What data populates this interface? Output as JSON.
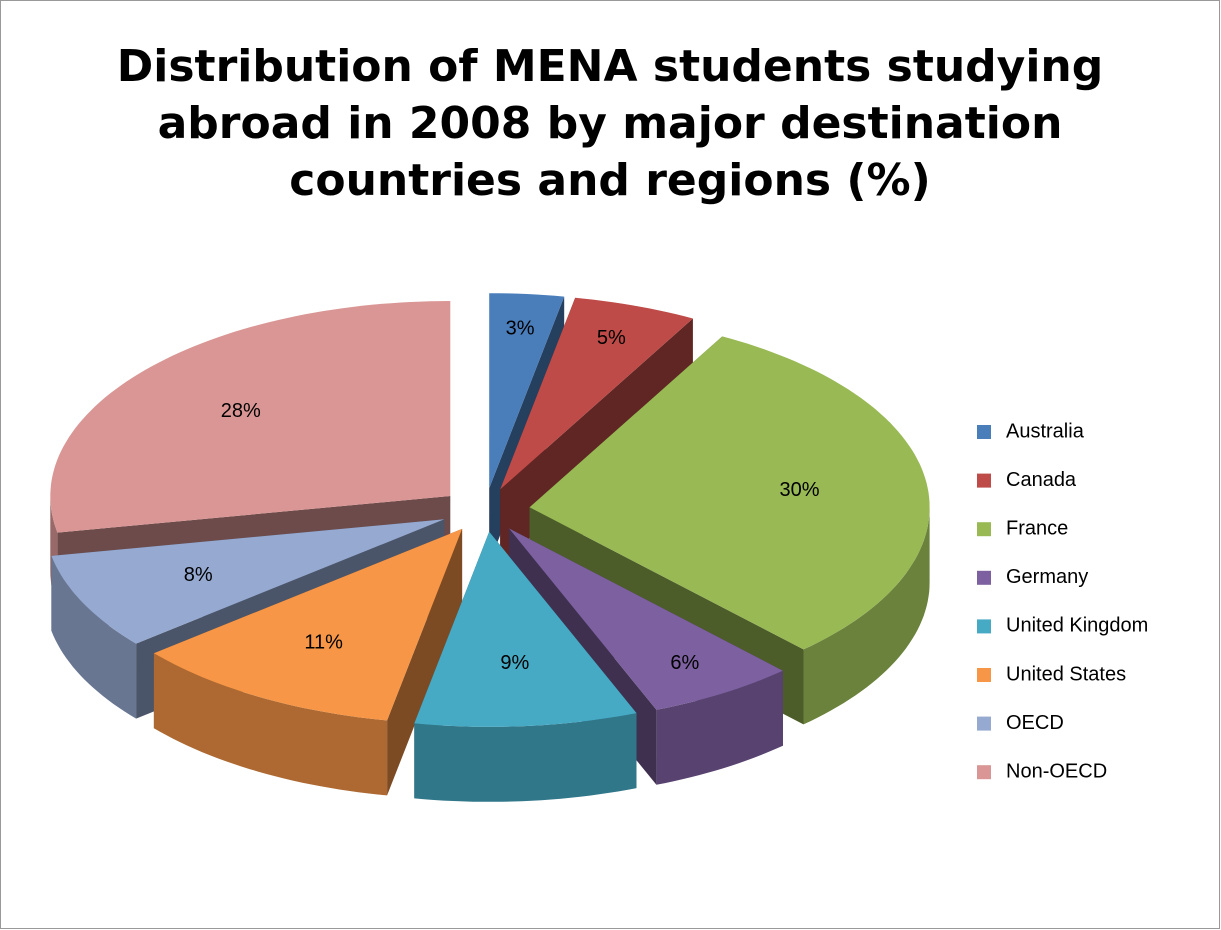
{
  "chart_data": {
    "type": "pie3d",
    "title": "Distribution of MENA students studying abroad in 2008 by major destination countries and regions (%)",
    "categories": [
      "Australia",
      "Canada",
      "France",
      "Germany",
      "United Kingdom",
      "United States",
      "OECD",
      "Non-OECD"
    ],
    "values": [
      3,
      5,
      30,
      6,
      9,
      11,
      8,
      28
    ],
    "value_labels": [
      "3%",
      "5%",
      "30%",
      "6%",
      "9%",
      "11%",
      "8%",
      "28%"
    ],
    "colors": [
      "#4a7ebb",
      "#be4b48",
      "#98b954",
      "#7d60a0",
      "#46aac5",
      "#f79646",
      "#95a9d1",
      "#d99694"
    ],
    "legend": "right"
  }
}
